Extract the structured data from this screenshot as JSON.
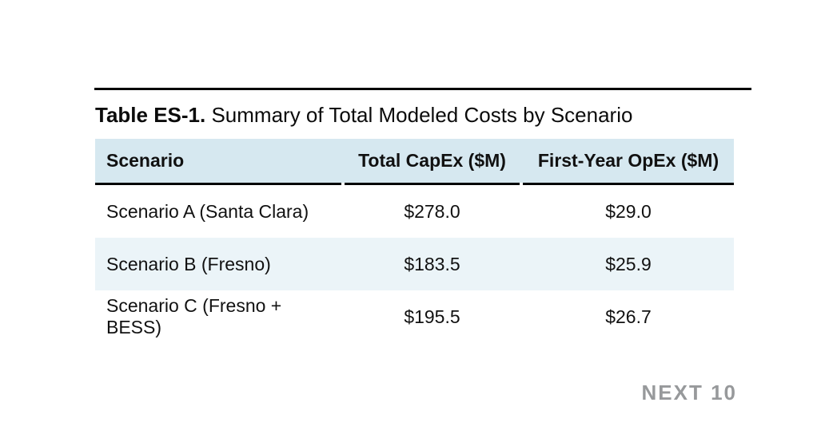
{
  "title": {
    "bold": "Table ES-1.",
    "rest": " Summary of Total Modeled Costs by Scenario"
  },
  "table": {
    "columns": [
      "Scenario",
      "Total CapEx ($M)",
      "First-Year OpEx ($M)"
    ],
    "rows": [
      {
        "scenario": "Scenario A (Santa Clara)",
        "capex": "$278.0",
        "opex": "$29.0"
      },
      {
        "scenario": "Scenario B (Fresno)",
        "capex": "$183.5",
        "opex": "$25.9"
      },
      {
        "scenario": "Scenario C (Fresno + BESS)",
        "capex": "$195.5",
        "opex": "$26.7"
      }
    ]
  },
  "colors": {
    "header_bg": "#d6e8f0",
    "alt_row_bg": "#ebf4f8",
    "top_rule": "#000000",
    "text": "#111111",
    "brand_gray": "#97999b"
  },
  "footer": {
    "brand": "NEXT 10"
  }
}
